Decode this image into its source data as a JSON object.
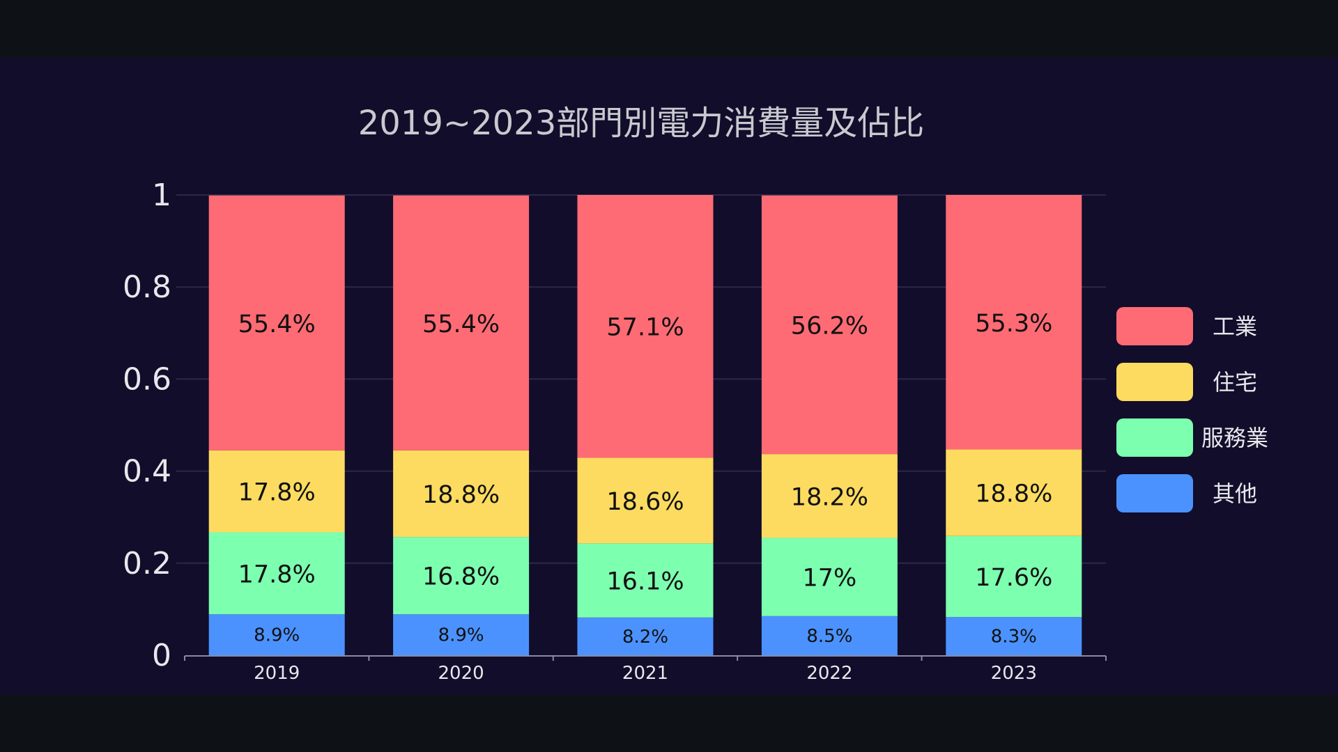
{
  "chart_data": {
    "type": "bar",
    "stacked": true,
    "title": "2019~2023部門別電力消費量及佔比",
    "categories": [
      "2019",
      "2020",
      "2021",
      "2022",
      "2023"
    ],
    "ylim": [
      0,
      1
    ],
    "yticks": [
      "0",
      "0.2",
      "0.4",
      "0.6",
      "0.8",
      "1"
    ],
    "grid": true,
    "legend_position": "right",
    "series": [
      {
        "name": "其他",
        "color": "#4b92ff",
        "values": [
          0.089,
          0.089,
          0.082,
          0.085,
          0.083
        ],
        "labels": [
          "8.9%",
          "8.9%",
          "8.2%",
          "8.5%",
          "8.3%"
        ]
      },
      {
        "name": "服務業",
        "color": "#7dffb0",
        "values": [
          0.178,
          0.168,
          0.161,
          0.17,
          0.176
        ],
        "labels": [
          "17.8%",
          "16.8%",
          "16.1%",
          "17%",
          "17.6%"
        ]
      },
      {
        "name": "住宅",
        "color": "#fcdb60",
        "values": [
          0.178,
          0.188,
          0.186,
          0.182,
          0.188
        ],
        "labels": [
          "17.8%",
          "18.8%",
          "18.6%",
          "18.2%",
          "18.8%"
        ]
      },
      {
        "name": "工業",
        "color": "#ff6b74",
        "values": [
          0.554,
          0.554,
          0.571,
          0.562,
          0.553
        ],
        "labels": [
          "55.4%",
          "55.4%",
          "57.1%",
          "56.2%",
          "55.3%"
        ]
      }
    ],
    "legend_order": [
      "工業",
      "住宅",
      "服務業",
      "其他"
    ]
  }
}
